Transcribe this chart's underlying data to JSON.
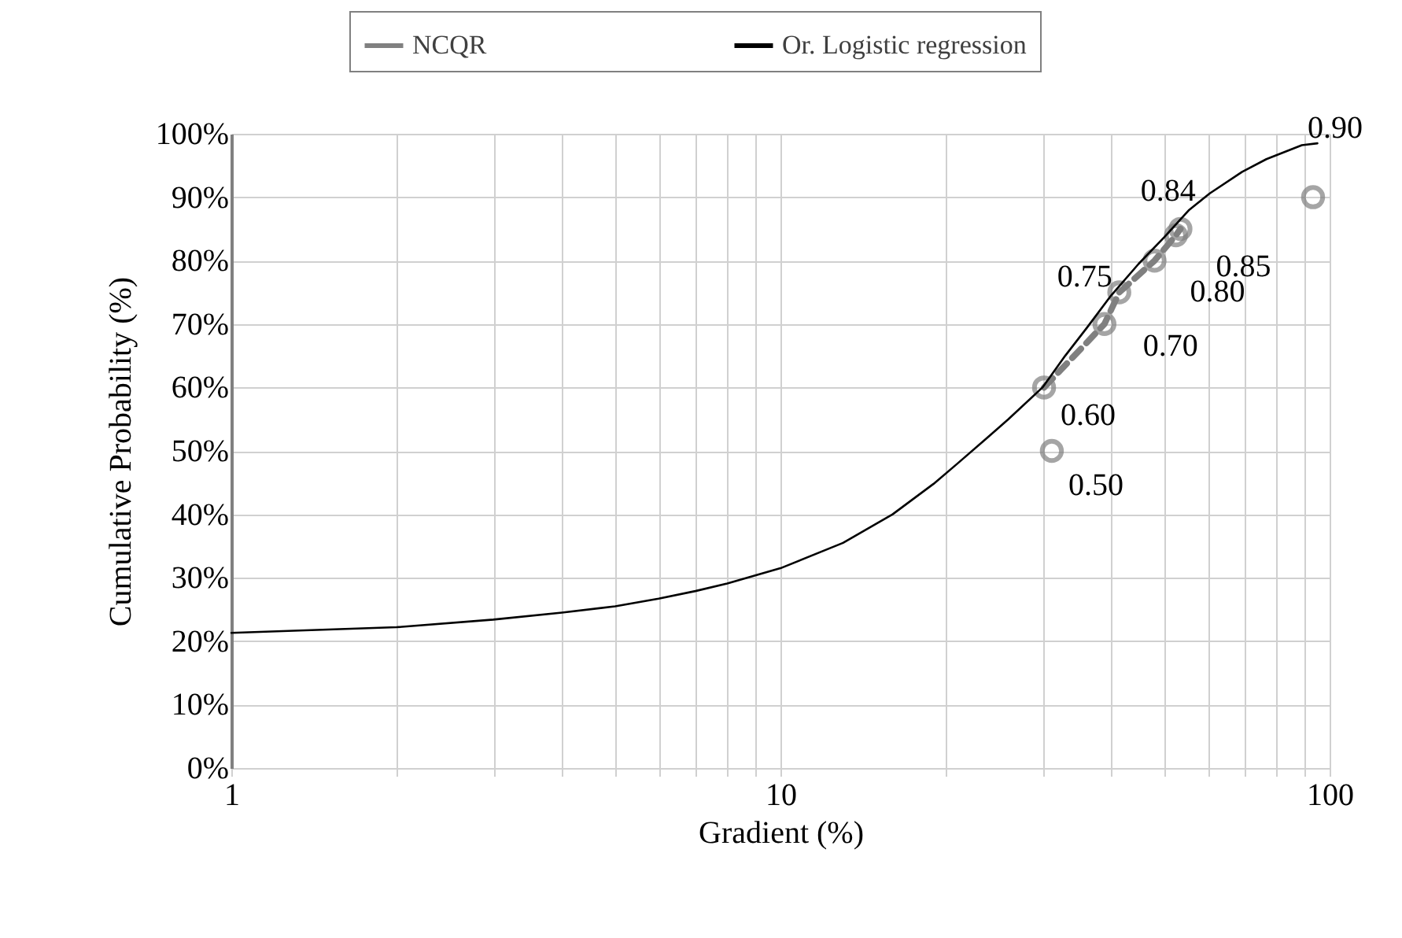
{
  "chart_data": {
    "type": "line",
    "xlabel": "Gradient (%)",
    "ylabel": "Cumulative Probability (%)",
    "series": [
      {
        "name": "NCQR",
        "color": "#808080",
        "marker": "circle",
        "line_style": "dashed",
        "x": [
          31.2,
          30.7,
          30.2,
          38.9,
          41.4,
          48,
          52.5,
          53.5,
          70,
          93.3
        ],
        "values": [
          50,
          null,
          60,
          70,
          75,
          80,
          84,
          85,
          null,
          90
        ]
      },
      {
        "name": "Or. Logistic regression",
        "color": "#000000",
        "marker": "none",
        "line_style": "solid",
        "x": [
          1,
          2,
          3,
          4,
          5,
          6,
          7,
          8,
          10,
          13,
          16,
          19,
          21,
          23.6,
          26,
          30,
          33,
          36.2,
          40,
          44.9,
          50,
          55.5,
          60.5,
          69.3,
          76.7,
          89,
          95
        ],
        "values": [
          21.3,
          22.2,
          23.4,
          24.5,
          25.5,
          26.7,
          27.9,
          29.1,
          31.5,
          35.5,
          40,
          44.8,
          48,
          51.8,
          55,
          60,
          65,
          69.5,
          74.5,
          79.5,
          83.7,
          88,
          90.6,
          94,
          96,
          98.2,
          98.5
        ]
      }
    ],
    "log": "x",
    "xlim": [
      1,
      100
    ],
    "xticks": [
      1,
      {
        "value": 2,
        "label": null
      },
      {
        "value": 3,
        "label": null
      },
      {
        "value": 4,
        "label": null
      },
      {
        "value": 5,
        "label": null
      },
      {
        "value": 6,
        "label": null
      },
      {
        "value": 7,
        "label": null
      },
      {
        "value": 8,
        "label": null
      },
      {
        "value": 9,
        "label": null
      },
      10,
      {
        "value": 20,
        "label": null
      },
      {
        "value": 30,
        "label": null
      },
      {
        "value": 40,
        "label": null
      },
      {
        "value": 50,
        "label": null
      },
      {
        "value": 60,
        "label": null
      },
      {
        "value": 70,
        "label": null
      },
      {
        "value": 80,
        "label": null
      },
      {
        "value": 90,
        "label": null
      },
      100
    ],
    "ylim": [
      0,
      100
    ],
    "yticks": [
      {
        "value": 0,
        "label": "0%"
      },
      {
        "value": 10,
        "label": "10%"
      },
      {
        "value": 20,
        "label": "20%"
      },
      {
        "value": 30,
        "label": "30%"
      },
      {
        "value": 40,
        "label": "40%"
      },
      {
        "value": 50,
        "label": "50%"
      },
      {
        "value": 60,
        "label": "60%"
      },
      {
        "value": 70,
        "label": "70%"
      },
      {
        "value": 80,
        "label": "80%"
      },
      {
        "value": 90,
        "label": "90%"
      },
      {
        "value": 100,
        "label": "100%"
      }
    ],
    "grid": true,
    "legend": "top",
    "annotations": [
      {
        "text": "0.50",
        "x": 31.2,
        "y": 50
      },
      {
        "text": "0.60",
        "x": 30.2,
        "y": 60
      },
      {
        "text": "0.70",
        "x": 38.9,
        "y": 70
      },
      {
        "text": "0.75",
        "x": 41.4,
        "y": 75
      },
      {
        "text": "0.80",
        "x": 48,
        "y": 80
      },
      {
        "text": "0.84",
        "x": 52.5,
        "y": 84
      },
      {
        "text": "0.85",
        "x": 53.5,
        "y": 85
      },
      {
        "text": "0.90",
        "x": 93.3,
        "y": 90
      }
    ]
  }
}
